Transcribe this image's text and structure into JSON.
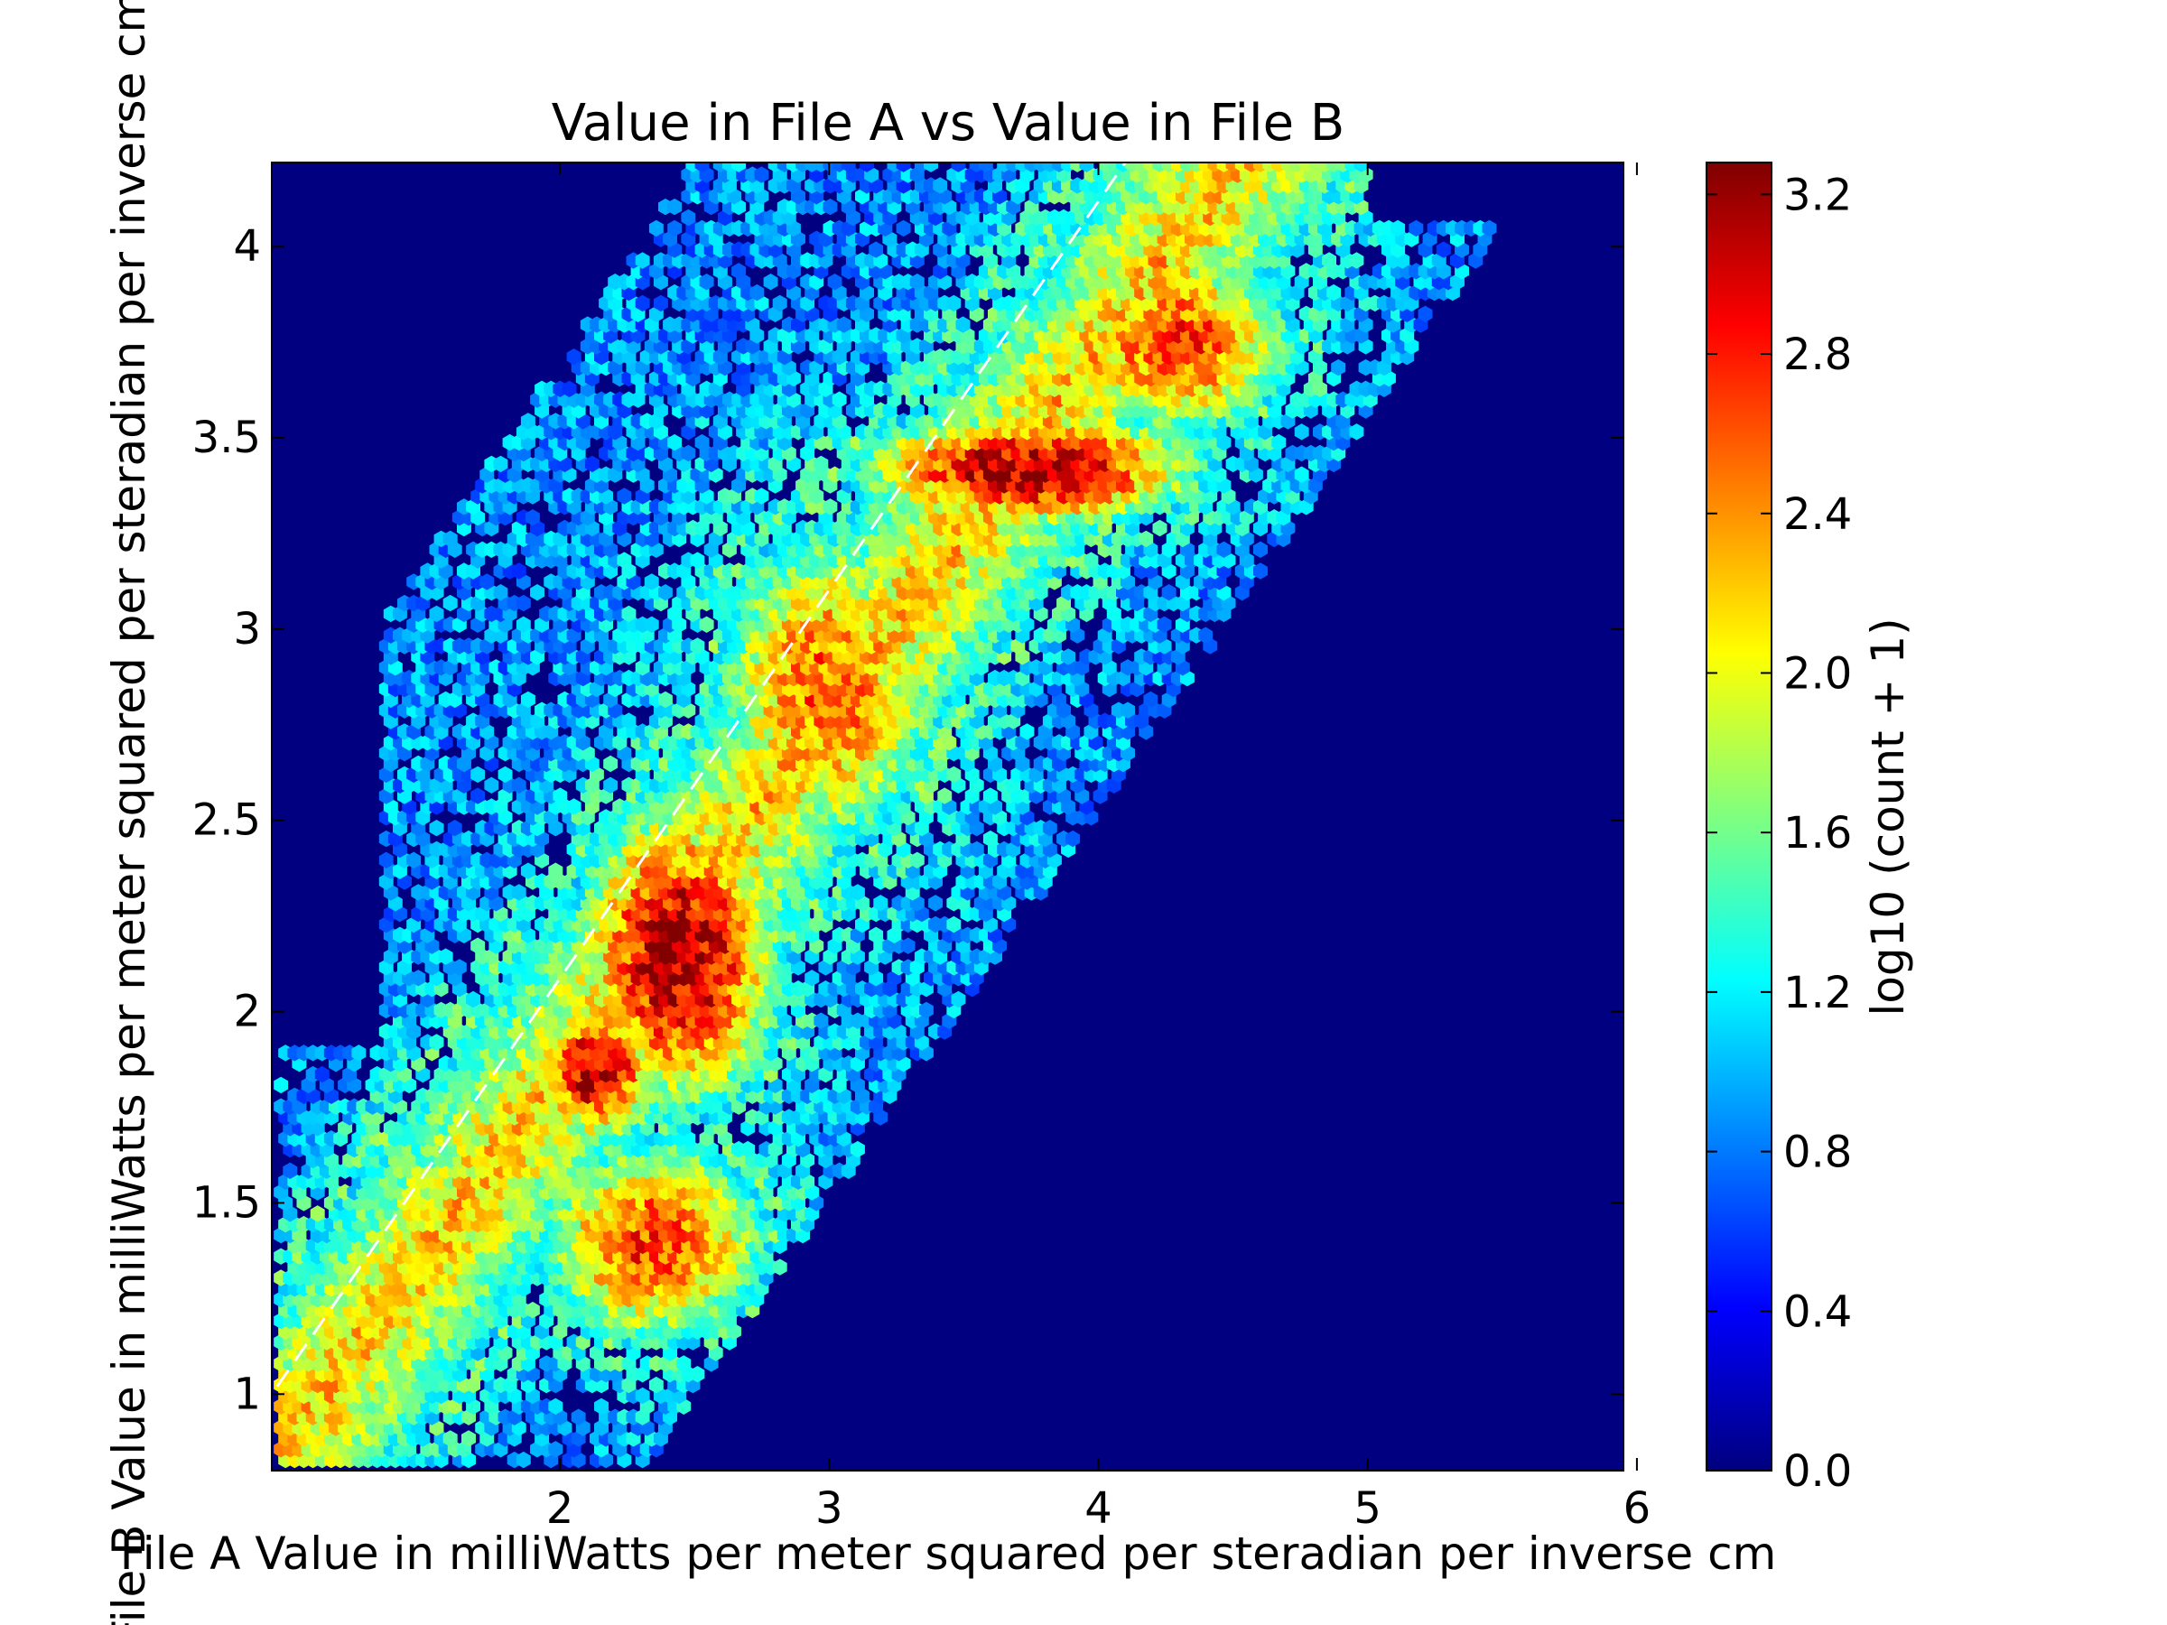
{
  "chart_data": {
    "type": "heatmap",
    "subtype": "hexbin",
    "title": "Value in File A vs Value in File B",
    "xlabel": "File A Value in milliWatts per meter squared per steradian per inverse cm",
    "ylabel": "File B Value in milliWatts per meter squared per steradian per inverse cm",
    "xlim": [
      0.93,
      5.95
    ],
    "ylim": [
      0.8,
      4.22
    ],
    "x_ticks": [
      2,
      3,
      4,
      5,
      6
    ],
    "x_tick_labels": [
      "2",
      "3",
      "4",
      "5",
      "6"
    ],
    "y_ticks": [
      1,
      1.5,
      2,
      2.5,
      3,
      3.5,
      4
    ],
    "y_tick_labels": [
      "1",
      "1.5",
      "2",
      "2.5",
      "3",
      "3.5",
      "4"
    ],
    "grid": false,
    "colormap": "jet",
    "background_color": "#000080",
    "colorbar": {
      "label": "log10 (count + 1)",
      "range": [
        0.0,
        3.28
      ],
      "ticks": [
        0.0,
        0.4,
        0.8,
        1.2,
        1.6,
        2.0,
        2.4,
        2.8,
        3.2
      ],
      "tick_labels": [
        "0.0",
        "0.4",
        "0.8",
        "1.2",
        "1.6",
        "2.0",
        "2.4",
        "2.8",
        "3.2"
      ]
    },
    "reference_line": {
      "style": "dashed",
      "color": "#ffffff",
      "from": [
        0.95,
        1.02
      ],
      "to": [
        4.1,
        4.22
      ]
    },
    "density_clusters": [
      {
        "x": 2.45,
        "y": 2.15,
        "sx": 0.3,
        "sy": 0.32,
        "value": 3.2
      },
      {
        "x": 2.15,
        "y": 1.85,
        "sx": 0.18,
        "sy": 0.16,
        "value": 3.1
      },
      {
        "x": 3.75,
        "y": 3.42,
        "sx": 0.5,
        "sy": 0.12,
        "value": 3.22
      },
      {
        "x": 4.3,
        "y": 3.75,
        "sx": 0.35,
        "sy": 0.2,
        "value": 2.7
      },
      {
        "x": 2.35,
        "y": 1.4,
        "sx": 0.35,
        "sy": 0.22,
        "value": 2.7
      },
      {
        "x": 3.0,
        "y": 2.85,
        "sx": 0.35,
        "sy": 0.35,
        "value": 2.55
      }
    ],
    "density_band": {
      "axis_slope": 0.95,
      "axis_intercept": -0.07,
      "width": 0.75,
      "value": 2.25
    }
  }
}
